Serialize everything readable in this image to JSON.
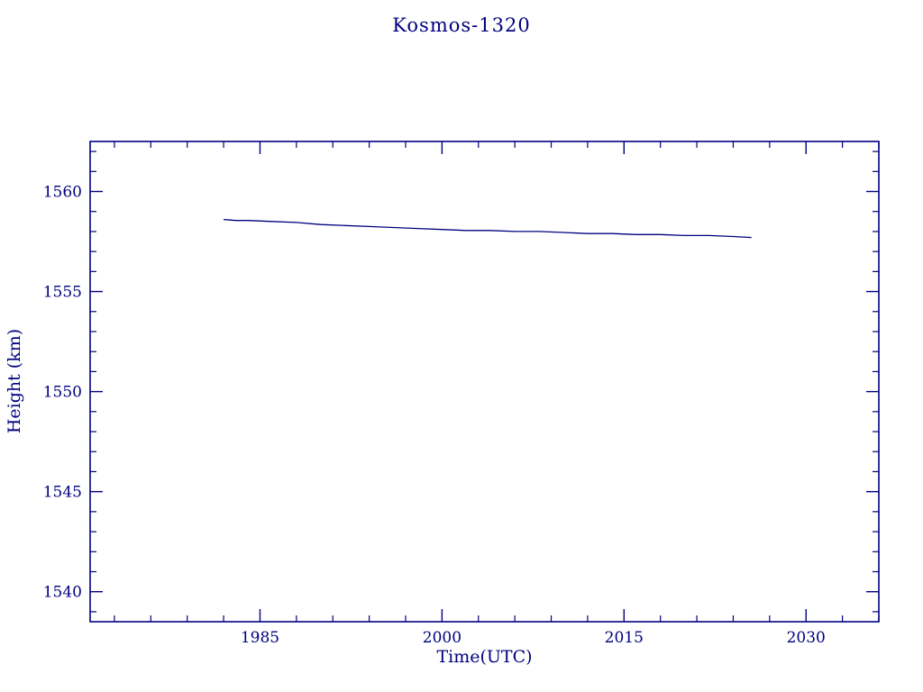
{
  "colors": {
    "accent": "#000080",
    "background": "#ffffff"
  },
  "chart_data": {
    "type": "line",
    "title": "Kosmos-1320",
    "xlabel": "Time(UTC)",
    "ylabel": "Height (km)",
    "xlim": [
      1971,
      2036
    ],
    "ylim": [
      1538.5,
      1562.5
    ],
    "x_ticks": [
      1985,
      2000,
      2015,
      2030
    ],
    "y_ticks": [
      1540,
      1545,
      1550,
      1555,
      1560
    ],
    "x_minor_step": 3,
    "y_minor_step": 1,
    "grid": false,
    "legend": "none",
    "line_color": "#000080",
    "series": [
      {
        "name": "height",
        "x": [
          1982.0,
          1983,
          1984,
          1986,
          1988,
          1990,
          1992,
          1994,
          1996,
          1998,
          2000,
          2002,
          2004,
          2006,
          2008,
          2010,
          2012,
          2014,
          2016,
          2018,
          2020,
          2022,
          2024,
          2025.5
        ],
        "y": [
          1558.6,
          1558.55,
          1558.55,
          1558.5,
          1558.45,
          1558.35,
          1558.3,
          1558.25,
          1558.2,
          1558.15,
          1558.1,
          1558.05,
          1558.05,
          1558.0,
          1558.0,
          1557.95,
          1557.9,
          1557.9,
          1557.85,
          1557.85,
          1557.8,
          1557.8,
          1557.75,
          1557.7
        ]
      }
    ]
  }
}
